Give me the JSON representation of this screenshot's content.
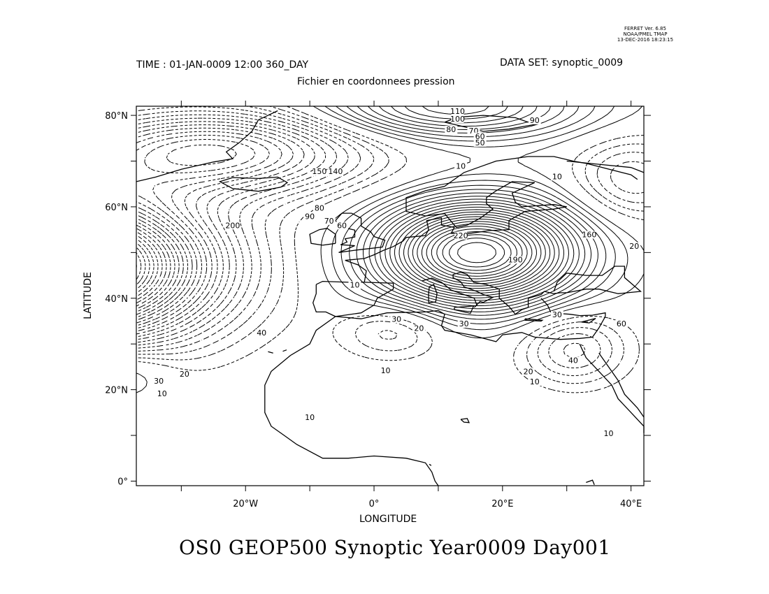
{
  "stamp": {
    "line1": "FERRET Ver. 6.85",
    "line2": "NOAA/PMEL TMAP",
    "line3": "13-DEC-2016 18:23:15"
  },
  "header": {
    "time": "TIME : 01-JAN-0009 12:00 360_DAY",
    "dataset": "DATA SET: synoptic_0009",
    "subtitle": "Fichier en coordonnees pression"
  },
  "axes": {
    "xlabel": "LONGITUDE",
    "ylabel": "LATITUDE",
    "lon_range": [
      -37,
      42
    ],
    "lat_range": [
      -1,
      82
    ],
    "xticks": [
      {
        "value": -20,
        "label": "20°W"
      },
      {
        "value": 0,
        "label": "0°"
      },
      {
        "value": 20,
        "label": "20°E"
      },
      {
        "value": 40,
        "label": "40°E"
      }
    ],
    "yticks": [
      {
        "value": 0,
        "label": "0°"
      },
      {
        "value": 20,
        "label": "20°N"
      },
      {
        "value": 40,
        "label": "40°N"
      },
      {
        "value": 60,
        "label": "60°N"
      },
      {
        "value": 80,
        "label": "80°N"
      }
    ]
  },
  "footer_title": "OS0 GEOP500 Synoptic Year0009 Day001",
  "contour_labels": [
    {
      "text": "110",
      "lon": 13,
      "lat": 80.5
    },
    {
      "text": "100",
      "lon": 13,
      "lat": 78.8
    },
    {
      "text": "90",
      "lon": 25,
      "lat": 78.5
    },
    {
      "text": "80",
      "lon": 12,
      "lat": 76.5
    },
    {
      "text": "70",
      "lon": 15.5,
      "lat": 76.2
    },
    {
      "text": "60",
      "lon": 16.5,
      "lat": 75
    },
    {
      "text": "50",
      "lon": 16.5,
      "lat": 73.6
    },
    {
      "text": "10",
      "lon": 13.5,
      "lat": 68.5
    },
    {
      "text": "10",
      "lon": 28.5,
      "lat": 66.2
    },
    {
      "text": "150",
      "lon": -8.5,
      "lat": 67.3
    },
    {
      "text": "140",
      "lon": -6,
      "lat": 67.3
    },
    {
      "text": "200",
      "lon": -22,
      "lat": 55.5
    },
    {
      "text": "90",
      "lon": -10,
      "lat": 57.5
    },
    {
      "text": "80",
      "lon": -8.5,
      "lat": 59.3
    },
    {
      "text": "70",
      "lon": -7,
      "lat": 56.5
    },
    {
      "text": "60",
      "lon": -5,
      "lat": 55.5
    },
    {
      "text": "220",
      "lon": 13.5,
      "lat": 53.3
    },
    {
      "text": "190",
      "lon": 22,
      "lat": 48
    },
    {
      "text": "160",
      "lon": 33.5,
      "lat": 53.5
    },
    {
      "text": "20",
      "lon": 40.5,
      "lat": 51
    },
    {
      "text": "10",
      "lon": -3,
      "lat": 42.5
    },
    {
      "text": "30",
      "lon": 3.5,
      "lat": 35
    },
    {
      "text": "20",
      "lon": 7,
      "lat": 33
    },
    {
      "text": "30",
      "lon": 14,
      "lat": 34
    },
    {
      "text": "30",
      "lon": 28.5,
      "lat": 36
    },
    {
      "text": "60",
      "lon": 38.5,
      "lat": 34
    },
    {
      "text": "40",
      "lon": 31,
      "lat": 26
    },
    {
      "text": "20",
      "lon": 24,
      "lat": 23.5
    },
    {
      "text": "10",
      "lon": 25,
      "lat": 21.3
    },
    {
      "text": "10",
      "lon": 1.8,
      "lat": 23.8
    },
    {
      "text": "40",
      "lon": -17.5,
      "lat": 32
    },
    {
      "text": "30",
      "lon": -33.5,
      "lat": 21.5
    },
    {
      "text": "20",
      "lon": -29.5,
      "lat": 23
    },
    {
      "text": "10",
      "lon": -33,
      "lat": 18.7
    },
    {
      "text": "10",
      "lon": -10,
      "lat": 13.5
    },
    {
      "text": "10",
      "lon": 36.5,
      "lat": 10
    }
  ]
}
